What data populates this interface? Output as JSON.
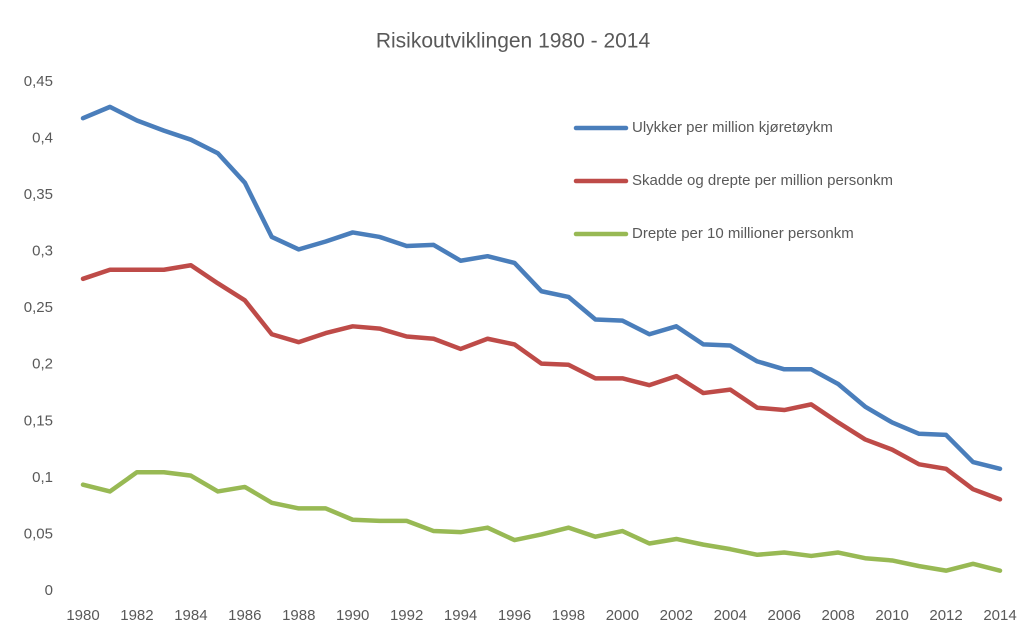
{
  "chart_data": {
    "type": "line",
    "title": "Risikoutviklingen 1980 - 2014",
    "categories": [
      "1980",
      null,
      "1982",
      null,
      "1984",
      null,
      "1986",
      null,
      "1988",
      null,
      "1990",
      null,
      "1992",
      null,
      "1994",
      null,
      "1996",
      null,
      "1998",
      null,
      "2000",
      null,
      "2002",
      null,
      "2004",
      null,
      "2006",
      null,
      "2008",
      null,
      "2010",
      null,
      "2012",
      null,
      "2014"
    ],
    "series": [
      {
        "name": "Ulykker per million kjøretøykm",
        "color": "#4a7ebb",
        "values": [
          0.418,
          0.428,
          0.416,
          0.407,
          0.399,
          0.387,
          0.361,
          0.313,
          0.302,
          0.309,
          0.317,
          0.313,
          0.305,
          0.306,
          0.292,
          0.296,
          0.29,
          0.265,
          0.26,
          0.24,
          0.239,
          0.227,
          0.234,
          0.218,
          0.217,
          0.203,
          0.196,
          0.196,
          0.183,
          0.163,
          0.149,
          0.139,
          0.138,
          0.114,
          0.108
        ]
      },
      {
        "name": "Skadde og drepte per million personkm",
        "color": "#be4b48",
        "values": [
          0.276,
          0.284,
          0.284,
          0.284,
          0.288,
          0.272,
          0.257,
          0.227,
          0.22,
          0.228,
          0.234,
          0.232,
          0.225,
          0.223,
          0.214,
          0.223,
          0.218,
          0.201,
          0.2,
          0.188,
          0.188,
          0.182,
          0.19,
          0.175,
          0.178,
          0.162,
          0.16,
          0.165,
          0.149,
          0.134,
          0.125,
          0.112,
          0.108,
          0.09,
          0.081
        ]
      },
      {
        "name": "Drepte per 10 millioner personkm",
        "color": "#98b954",
        "values": [
          0.094,
          0.088,
          0.105,
          0.105,
          0.102,
          0.088,
          0.092,
          0.078,
          0.073,
          0.073,
          0.063,
          0.062,
          0.062,
          0.053,
          0.052,
          0.056,
          0.045,
          0.05,
          0.056,
          0.048,
          0.053,
          0.042,
          0.046,
          0.041,
          0.037,
          0.032,
          0.034,
          0.031,
          0.034,
          0.029,
          0.027,
          0.022,
          0.018,
          0.024,
          0.018
        ]
      }
    ],
    "ylim": [
      0,
      0.45
    ],
    "yticks": [
      0,
      {
        "value": 0.05,
        "label": "0,05"
      },
      {
        "value": 0.1,
        "label": "0,1"
      },
      {
        "value": 0.15,
        "label": "0,15"
      },
      {
        "value": 0.2,
        "label": "0,2"
      },
      {
        "value": 0.25,
        "label": "0,25"
      },
      {
        "value": 0.3,
        "label": "0,3"
      },
      {
        "value": 0.35,
        "label": "0,35"
      },
      {
        "value": 0.4,
        "label": "0,4"
      },
      {
        "value": 0.45,
        "label": "0,45"
      }
    ],
    "legend": "upper right"
  }
}
